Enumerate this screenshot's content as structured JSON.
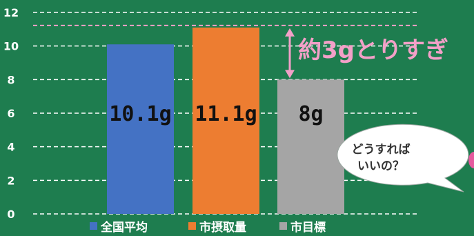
{
  "colors": {
    "background": "#1e7d4f",
    "grid": "#ffffff",
    "highlight": "#f3a0c8",
    "bubble": "#ffffff"
  },
  "chart_data": {
    "type": "bar",
    "categories": [
      "全国平均",
      "市摂取量",
      "市目標"
    ],
    "values": [
      10.1,
      11.1,
      8
    ],
    "value_labels": [
      "10.1g",
      "11.1g",
      "8g"
    ],
    "colors": [
      "#4472c4",
      "#ed7d31",
      "#a5a5a5"
    ],
    "ylim": [
      0,
      12
    ],
    "yticks": [
      "0",
      "2",
      "4",
      "6",
      "8",
      "10",
      "12"
    ],
    "grid": "dashed horizontal",
    "legend": "bottom",
    "title": "",
    "xlabel": "",
    "ylabel": ""
  },
  "annotations": {
    "excess_label": "約3gとりすぎ",
    "bubble_line1": "どうすれば",
    "bubble_line2": "いいの？"
  }
}
